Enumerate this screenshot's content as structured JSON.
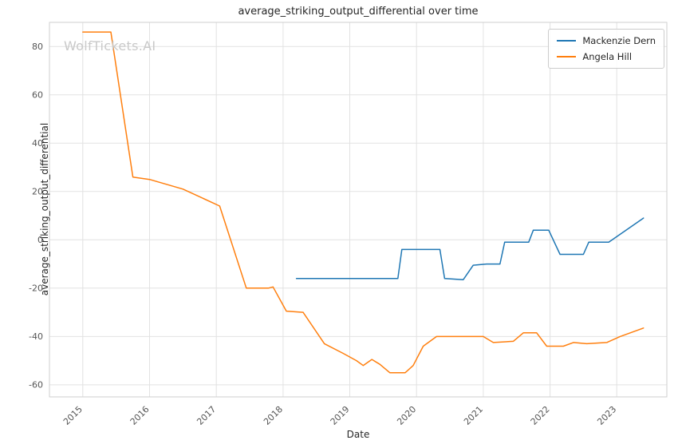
{
  "watermark": {
    "text": "WolfTickets.AI",
    "color": "#c9c9c9"
  },
  "chart_data": {
    "type": "line",
    "title": "average_striking_output_differential over time",
    "xlabel": "Date",
    "ylabel": "average_striking_output_differential",
    "xlim": [
      2014.5,
      2023.75
    ],
    "ylim": [
      -65,
      90
    ],
    "xticks": [
      2015,
      2016,
      2017,
      2018,
      2019,
      2020,
      2021,
      2022,
      2023
    ],
    "yticks": [
      -60,
      -40,
      -20,
      0,
      20,
      40,
      60,
      80
    ],
    "grid": true,
    "legend_position": "upper right",
    "series": [
      {
        "name": "Mackenzie Dern",
        "color": "#1f77b4",
        "points": [
          [
            2018.2,
            -16
          ],
          [
            2019.72,
            -16
          ],
          [
            2019.78,
            -4
          ],
          [
            2020.35,
            -4
          ],
          [
            2020.42,
            -16
          ],
          [
            2020.7,
            -16.5
          ],
          [
            2020.85,
            -10.5
          ],
          [
            2021.05,
            -10
          ],
          [
            2021.25,
            -10
          ],
          [
            2021.32,
            -1
          ],
          [
            2021.68,
            -1
          ],
          [
            2021.75,
            4
          ],
          [
            2021.98,
            4
          ],
          [
            2022.15,
            -6
          ],
          [
            2022.5,
            -6
          ],
          [
            2022.58,
            -1
          ],
          [
            2022.88,
            -1
          ],
          [
            2023.4,
            9
          ]
        ]
      },
      {
        "name": "Angela Hill",
        "color": "#ff7f0e",
        "points": [
          [
            2015.0,
            86
          ],
          [
            2015.42,
            86
          ],
          [
            2015.75,
            26
          ],
          [
            2016.0,
            25
          ],
          [
            2016.5,
            21
          ],
          [
            2017.05,
            14
          ],
          [
            2017.45,
            -20
          ],
          [
            2017.78,
            -20
          ],
          [
            2017.85,
            -19.5
          ],
          [
            2018.05,
            -29.5
          ],
          [
            2018.3,
            -30
          ],
          [
            2018.62,
            -43
          ],
          [
            2018.9,
            -47
          ],
          [
            2019.1,
            -50
          ],
          [
            2019.2,
            -52
          ],
          [
            2019.33,
            -49.5
          ],
          [
            2019.45,
            -51.5
          ],
          [
            2019.6,
            -55
          ],
          [
            2019.83,
            -55
          ],
          [
            2019.95,
            -52
          ],
          [
            2020.1,
            -44
          ],
          [
            2020.3,
            -40
          ],
          [
            2021.0,
            -40
          ],
          [
            2021.15,
            -42.5
          ],
          [
            2021.45,
            -42
          ],
          [
            2021.6,
            -38.5
          ],
          [
            2021.8,
            -38.5
          ],
          [
            2021.95,
            -44
          ],
          [
            2022.2,
            -44
          ],
          [
            2022.35,
            -42.5
          ],
          [
            2022.55,
            -43
          ],
          [
            2022.85,
            -42.5
          ],
          [
            2023.05,
            -40
          ],
          [
            2023.4,
            -36.5
          ]
        ]
      }
    ]
  }
}
